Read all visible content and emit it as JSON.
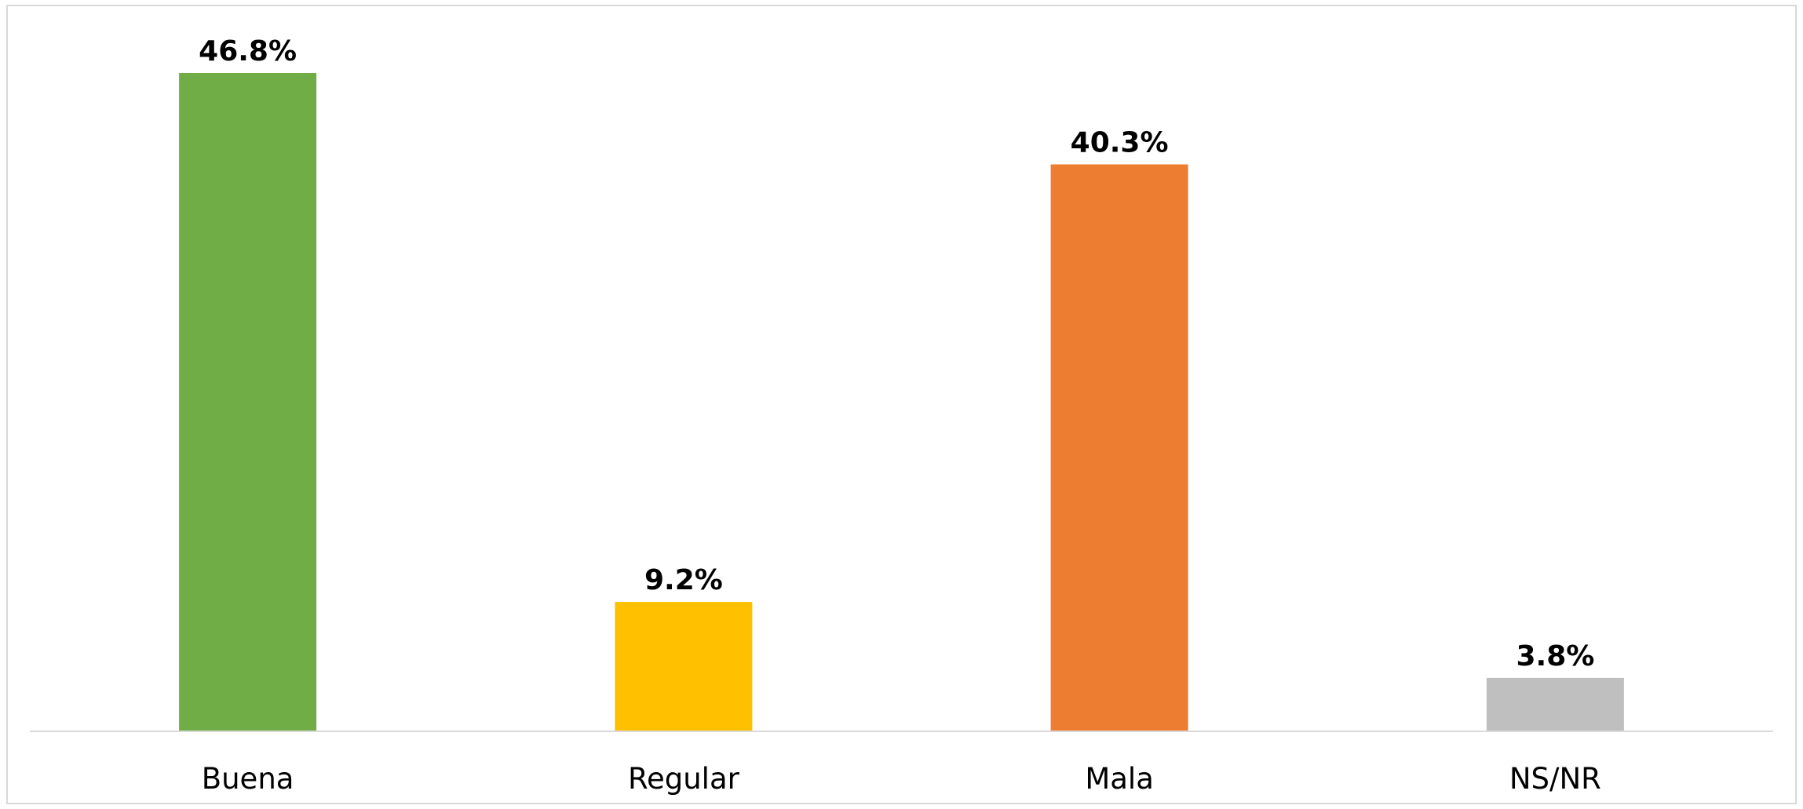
{
  "chart_data": {
    "type": "bar",
    "categories": [
      "Buena",
      "Regular",
      "Mala",
      "NS/NR"
    ],
    "values": [
      46.8,
      9.2,
      40.3,
      3.8
    ],
    "data_labels": [
      "46.8%",
      "9.2%",
      "40.3%",
      "3.8%"
    ],
    "colors": [
      "#70ad47",
      "#ffc000",
      "#ed7d31",
      "#bfbfbf"
    ],
    "ylim": [
      0,
      46.8
    ],
    "grid": false,
    "legend": "none"
  }
}
